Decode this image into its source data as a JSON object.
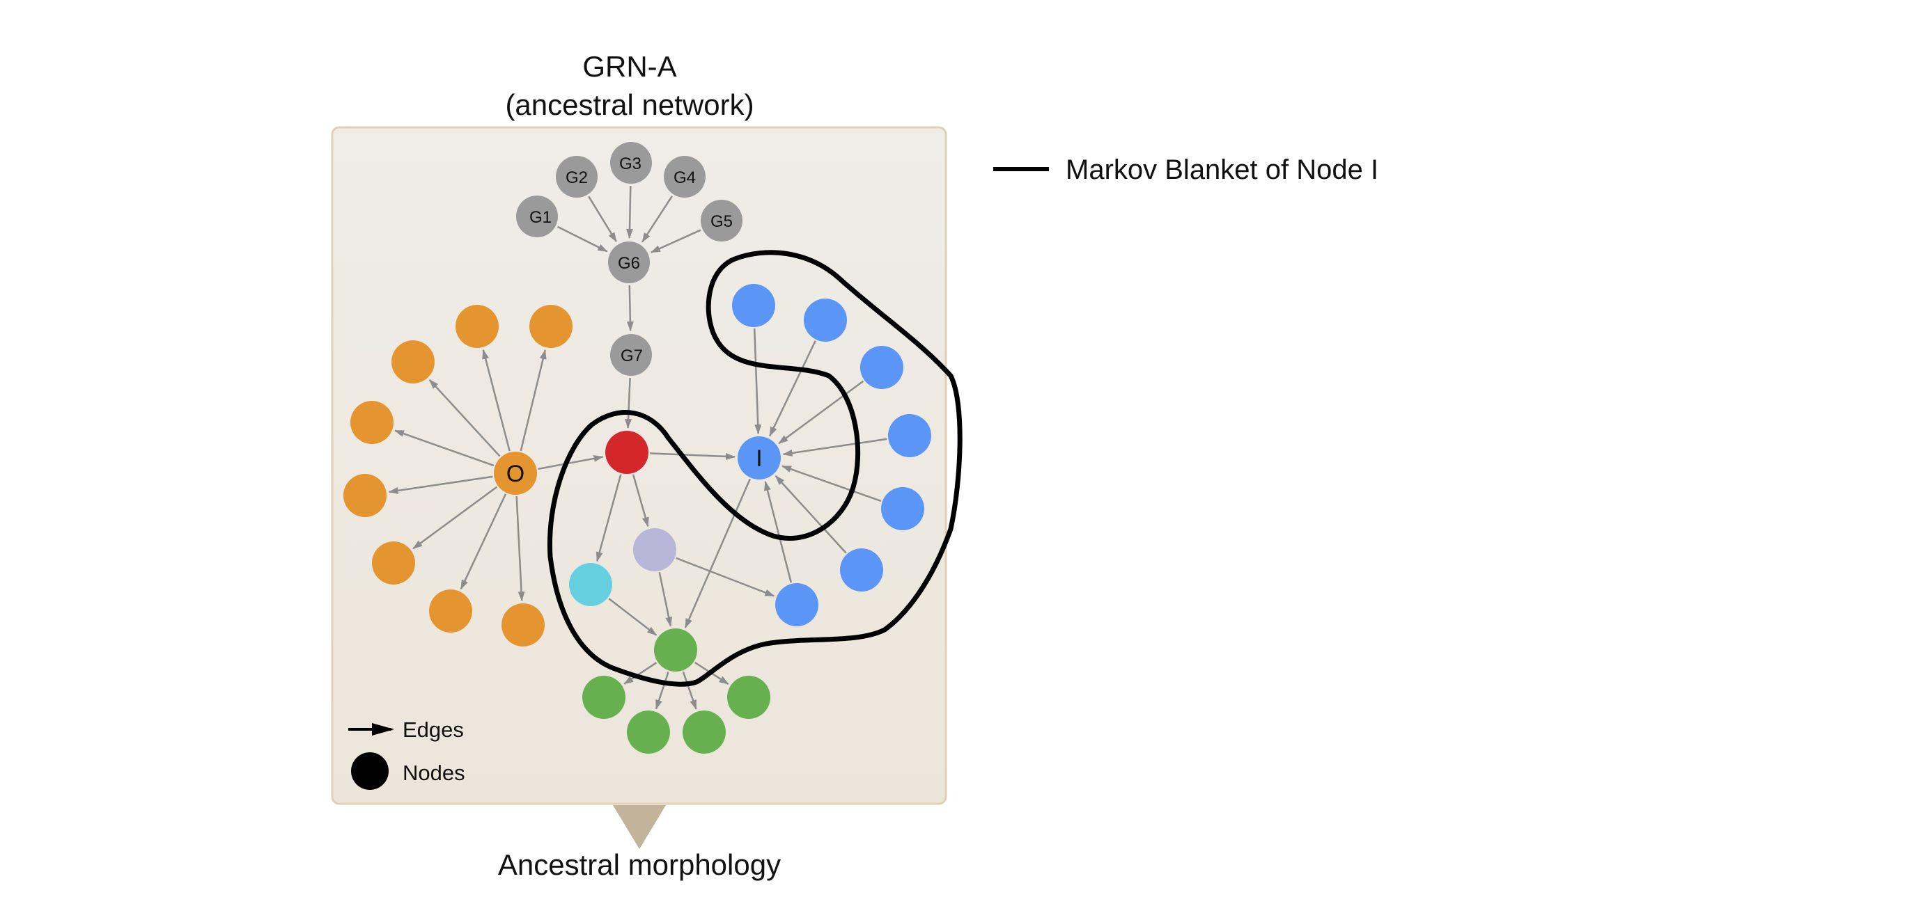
{
  "title_line1": "GRN-A",
  "title_line2": "(ancestral network)",
  "bottom_caption": "Ancestral morphology",
  "legend": {
    "markov_label": "Markov Blanket of Node I",
    "edges_label": "Edges",
    "nodes_label": "Nodes"
  },
  "nodes": {
    "G1": "G1",
    "G2": "G2",
    "G3": "G3",
    "G4": "G4",
    "G5": "G5",
    "G6": "G6",
    "G7": "G7",
    "O": "O",
    "I": "I"
  },
  "colors": {
    "panel_fill": "#efece5",
    "panel_border": "#e3cfb1",
    "gray": "#9a9a9a",
    "orange": "#e5952f",
    "red": "#d3272c",
    "blue": "#5b96f7",
    "lavender": "#b7b6d9",
    "cyan": "#66cfe0",
    "green": "#66b04f",
    "edge": "#8c8c8c",
    "blanket": "#000000",
    "pointer": "#c2b39b"
  }
}
